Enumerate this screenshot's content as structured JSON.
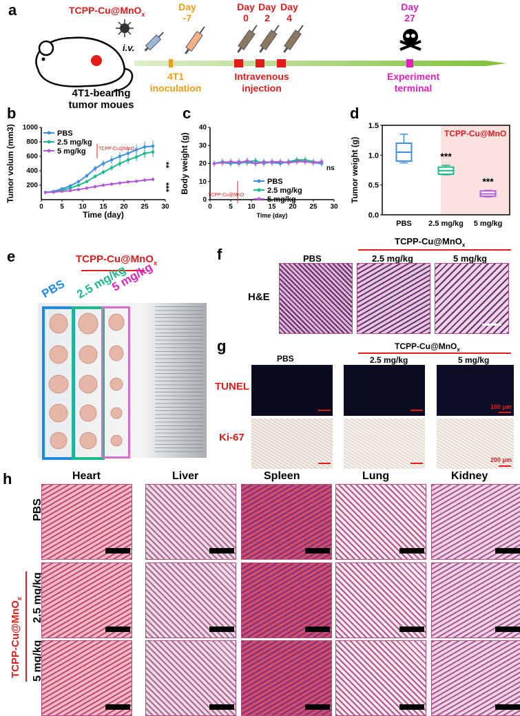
{
  "panel_labels": {
    "a": "a",
    "b": "b",
    "c": "c",
    "d": "d",
    "e": "e",
    "f": "f",
    "g": "g",
    "h": "h"
  },
  "schematic": {
    "agent_text": "TCPP-Cu@MnO",
    "agent_sub": "x",
    "iv": "i.v.",
    "mouse_label_1": "4T1-bearing",
    "mouse_label_2": "tumor moues",
    "day_minus7": [
      "Day",
      "-7"
    ],
    "day0": [
      "Day",
      "0"
    ],
    "day2": [
      "Day",
      "2"
    ],
    "day4": [
      "Day",
      "4"
    ],
    "day27": [
      "Day",
      "27"
    ],
    "step_inoculation": [
      "4T1",
      "inoculation"
    ],
    "step_injection": [
      "Intravenous",
      "injection"
    ],
    "step_terminal": [
      "Experiment",
      "terminal"
    ],
    "colors": {
      "orange": "#f39c12",
      "red": "#e31b1b",
      "magenta": "#e020c0",
      "timeline": "#b6d98a"
    }
  },
  "chart_b": {
    "type": "line",
    "ylabel": "Tumor volum (mm3)",
    "xlabel": "Time (day)",
    "xlim": [
      0,
      30
    ],
    "ylim": [
      0,
      1000
    ],
    "xticks": [
      0,
      5,
      10,
      15,
      20,
      25,
      30
    ],
    "yticks": [
      200,
      400,
      600,
      800,
      1000
    ],
    "x": [
      1,
      3,
      5,
      7,
      9,
      11,
      13,
      15,
      17,
      19,
      21,
      23,
      25,
      27
    ],
    "series": [
      {
        "name": "PBS",
        "color": "#3f8fe5",
        "values": [
          100,
          115,
          150,
          190,
          250,
          330,
          430,
          500,
          550,
          600,
          640,
          690,
          730,
          740
        ]
      },
      {
        "name": "2.5 mg/kg",
        "color": "#1cb98a",
        "values": [
          100,
          110,
          130,
          160,
          200,
          250,
          320,
          380,
          440,
          500,
          550,
          590,
          640,
          660
        ]
      },
      {
        "name": "5 mg/kg",
        "color": "#b35ad6",
        "values": [
          100,
          105,
          115,
          125,
          140,
          160,
          180,
          200,
          215,
          230,
          245,
          255,
          270,
          280
        ]
      }
    ],
    "bracket_label": "TCPP-Cu@MnO",
    "sig1": "**",
    "sig2": "***"
  },
  "chart_c": {
    "type": "line",
    "ylabel": "Body weight (g)",
    "xlabel": "Time (day)",
    "xlim": [
      0,
      30
    ],
    "ylim": [
      0,
      40
    ],
    "xticks": [
      0,
      5,
      10,
      15,
      20,
      25,
      30
    ],
    "yticks": [
      0,
      10,
      20,
      30,
      40
    ],
    "x": [
      1,
      3,
      5,
      7,
      9,
      11,
      13,
      15,
      17,
      19,
      21,
      23,
      25,
      27
    ],
    "series": [
      {
        "name": "PBS",
        "color": "#3f8fe5",
        "values": [
          20,
          20.5,
          20,
          21,
          20.5,
          20,
          21,
          20.5,
          20,
          21,
          21.5,
          21,
          20.5,
          20
        ]
      },
      {
        "name": "2.5 mg/kg",
        "color": "#1cb98a",
        "values": [
          20,
          21,
          20.5,
          20,
          21,
          21.5,
          20,
          21,
          20.5,
          21,
          22,
          22,
          21,
          20.5
        ]
      },
      {
        "name": "5 mg/kg",
        "color": "#b35ad6",
        "values": [
          20,
          20.5,
          21,
          20.5,
          21.5,
          20,
          20.5,
          21,
          21,
          20.5,
          21,
          21,
          20.5,
          21
        ]
      }
    ],
    "bracket_label": "TCPP-Cu@MnO",
    "sig": "ns"
  },
  "chart_d": {
    "type": "box",
    "ylabel": "Tumor weight (g)",
    "ylim": [
      0.0,
      1.5
    ],
    "yticks": [
      0.0,
      0.5,
      1.0,
      1.5
    ],
    "categories": [
      "PBS",
      "2.5 mg/kg",
      "5 mg/kg"
    ],
    "boxes": [
      {
        "min": 0.87,
        "q1": 0.9,
        "median": 1.05,
        "q3": 1.2,
        "max": 1.35,
        "color": "#3f8fe5"
      },
      {
        "min": 0.67,
        "q1": 0.68,
        "median": 0.74,
        "q3": 0.8,
        "max": 0.83,
        "color": "#1cb98a"
      },
      {
        "min": 0.3,
        "q1": 0.31,
        "median": 0.35,
        "q3": 0.4,
        "max": 0.41,
        "color": "#b35ad6"
      }
    ],
    "shade_label": "TCPP-Cu@MnO",
    "sig": [
      "***",
      "***"
    ]
  },
  "panel_e": {
    "header": "TCPP-Cu@MnO",
    "groups": [
      "PBS",
      "2.5 mg/kg",
      "5 mg/kg"
    ],
    "group_colors": [
      "#1e88e5",
      "#1cb98a",
      "#e020c0"
    ]
  },
  "panel_f": {
    "header": "TCPP-Cu@MnO",
    "cols": [
      "PBS",
      "2.5 mg/kg",
      "5 mg/kg"
    ],
    "row": "H&E"
  },
  "panel_g": {
    "header": "TCPP-Cu@MnO",
    "cols": [
      "PBS",
      "2.5 mg/kg",
      "5 mg/kg"
    ],
    "rows": [
      "TUNEL",
      "Ki-67"
    ],
    "scale1": "100 μm",
    "scale2": "200 μm"
  },
  "panel_h": {
    "cols": [
      "Heart",
      "Liver",
      "Spleen",
      "Lung",
      "Kidney"
    ],
    "rows": [
      "PBS",
      "2.5 mg/kg",
      "5 mg/kg"
    ],
    "side_label": "TCPP-Cu@MnO"
  }
}
